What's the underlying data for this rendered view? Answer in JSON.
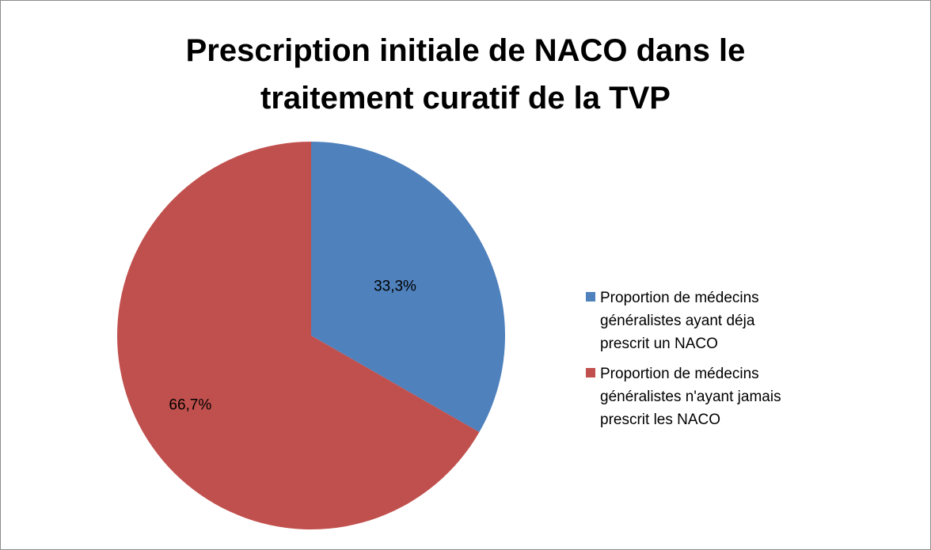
{
  "chart_data": {
    "type": "pie",
    "title": "Prescription initiale de NACO dans le traitement curatif de la TVP",
    "categories": [
      "Proportion de médecins généralistes ayant déja prescrit un NACO",
      "Proportion de médecins généralistes n'ayant jamais prescrit les NACO"
    ],
    "values": [
      33.3,
      66.7
    ],
    "value_labels": [
      "33,3%",
      "66,7%"
    ],
    "colors": [
      "#4f81bd",
      "#c0504d"
    ],
    "legend": "right"
  }
}
